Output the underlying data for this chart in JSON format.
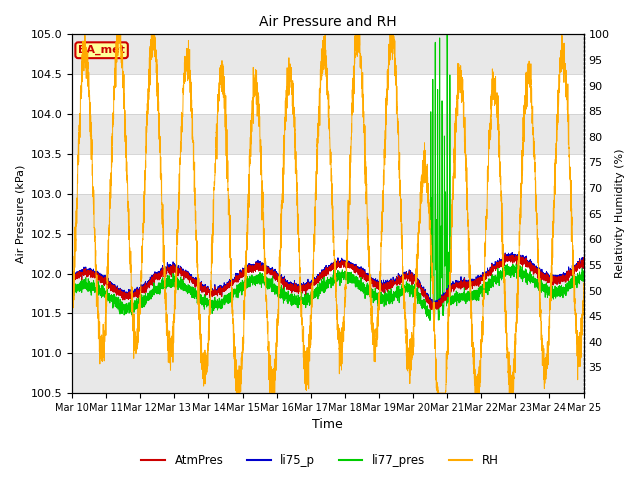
{
  "title": "Air Pressure and RH",
  "xlabel": "Time",
  "ylabel_left": "Air Pressure (kPa)",
  "ylabel_right": "Relativity Humidity (%)",
  "ylim_left": [
    100.5,
    105.0
  ],
  "ylim_right": [
    30,
    100
  ],
  "yticks_left": [
    100.5,
    101.0,
    101.5,
    102.0,
    102.5,
    103.0,
    103.5,
    104.0,
    104.5,
    105.0
  ],
  "yticks_right": [
    35,
    40,
    45,
    50,
    55,
    60,
    65,
    70,
    75,
    80,
    85,
    90,
    95,
    100
  ],
  "xtick_labels": [
    "Mar 10",
    "Mar 11",
    "Mar 12",
    "Mar 13",
    "Mar 14",
    "Mar 15",
    "Mar 16",
    "Mar 17",
    "Mar 18",
    "Mar 19",
    "Mar 20",
    "Mar 21",
    "Mar 22",
    "Mar 23",
    "Mar 24",
    "Mar 25"
  ],
  "n_days": 15,
  "color_atmpres": "#cc0000",
  "color_li75": "#0000cc",
  "color_li77": "#00cc00",
  "color_rh": "#ffaa00",
  "legend_items": [
    "AtmPres",
    "li75_p",
    "li77_pres",
    "RH"
  ],
  "annotation_text": "BA_met",
  "annotation_color": "#cc0000",
  "annotation_bg": "#ffff99",
  "grid_color": "#d0d0d0",
  "band_color": "#e8e8e8"
}
